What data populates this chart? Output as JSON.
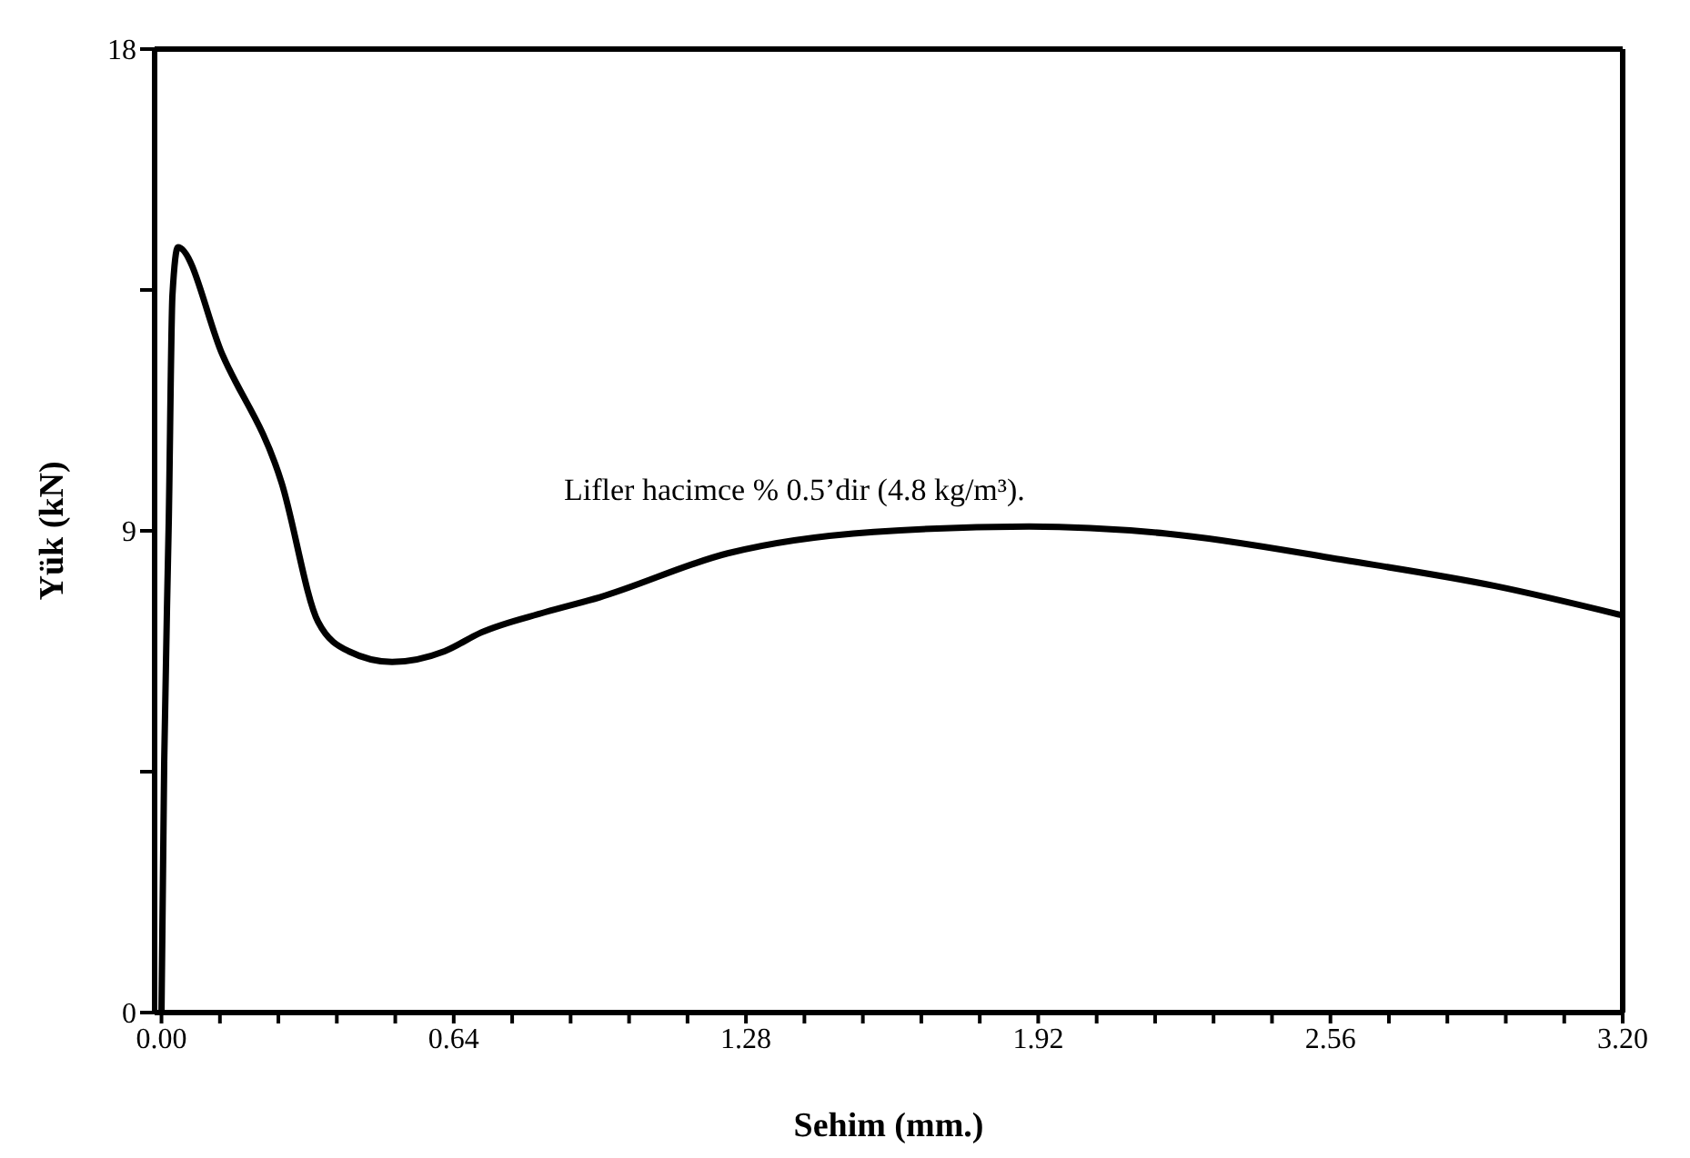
{
  "chart_data": {
    "type": "line",
    "xlabel": "Sehim (mm.)",
    "ylabel": "Yük (kN)",
    "x": [
      0,
      0.006,
      0.016,
      0.024,
      0.036,
      0.133,
      0.263,
      0.343,
      0.41,
      0.505,
      0.62,
      0.7,
      0.84,
      0.96,
      1.24,
      1.56,
      1.9,
      2.2,
      2.6,
      2.92,
      3.2
    ],
    "series": [
      {
        "color": "#000000",
        "values": [
          0,
          4.7,
          9.2,
          13.4,
          14.3,
          12.3,
          9.9,
          7.3,
          6.75,
          6.55,
          6.75,
          7.1,
          7.48,
          7.76,
          8.58,
          8.98,
          9.08,
          8.95,
          8.44,
          7.97,
          7.42
        ]
      }
    ],
    "xlim": [
      -0.015,
      3.2
    ],
    "xticks": [
      {
        "value": 0,
        "label": "0.00"
      },
      {
        "value": 0.128,
        "label": null
      },
      {
        "value": 0.256,
        "label": null
      },
      {
        "value": 0.384,
        "label": null
      },
      {
        "value": 0.512,
        "label": null
      },
      {
        "value": 0.64,
        "label": "0.64"
      },
      {
        "value": 0.768,
        "label": null
      },
      {
        "value": 0.896,
        "label": null
      },
      {
        "value": 1.024,
        "label": null
      },
      {
        "value": 1.152,
        "label": null
      },
      {
        "value": 1.28,
        "label": "1.28"
      },
      {
        "value": 1.408,
        "label": null
      },
      {
        "value": 1.536,
        "label": null
      },
      {
        "value": 1.664,
        "label": null
      },
      {
        "value": 1.792,
        "label": null
      },
      {
        "value": 1.92,
        "label": "1.92"
      },
      {
        "value": 2.048,
        "label": null
      },
      {
        "value": 2.176,
        "label": null
      },
      {
        "value": 2.304,
        "label": null
      },
      {
        "value": 2.432,
        "label": null
      },
      {
        "value": 2.56,
        "label": "2.56"
      },
      {
        "value": 2.688,
        "label": null
      },
      {
        "value": 2.816,
        "label": null
      },
      {
        "value": 2.944,
        "label": null
      },
      {
        "value": 3.072,
        "label": null
      },
      {
        "value": 3.2,
        "label": "3.20"
      }
    ],
    "ylim": [
      0,
      18
    ],
    "yticks": [
      0,
      {
        "value": 4.5,
        "label": null
      },
      9,
      {
        "value": 13.5,
        "label": null
      },
      18
    ],
    "annotations": [
      "Lifler hacimce % 0.5’dir (4.8 kg/m³)."
    ],
    "grid": false,
    "legend": false,
    "marker": "none",
    "line_style": "solid"
  }
}
